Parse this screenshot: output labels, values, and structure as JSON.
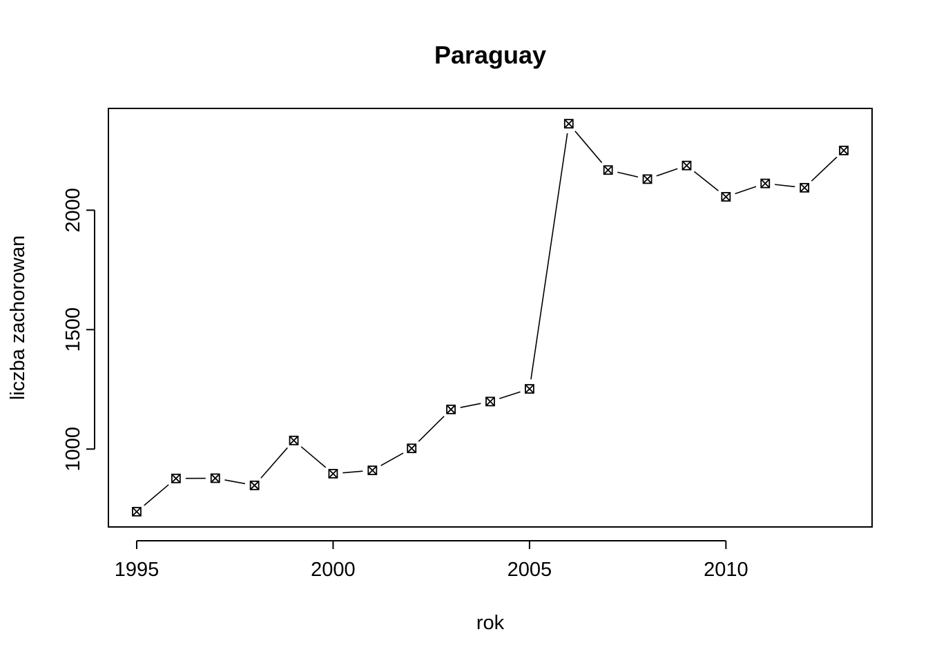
{
  "chart_data": {
    "type": "line",
    "title": "Paraguay",
    "xlabel": "rok",
    "ylabel": "liczba zachorowan",
    "x": [
      1995,
      1996,
      1997,
      1998,
      1999,
      2000,
      2001,
      2002,
      2003,
      2004,
      2005,
      2006,
      2007,
      2008,
      2009,
      2010,
      2011,
      2012,
      2013
    ],
    "series": [
      {
        "values": [
          738,
          877,
          878,
          848,
          1036,
          897,
          911,
          1003,
          1166,
          1199,
          1252,
          2362,
          2168,
          2130,
          2187,
          2056,
          2112,
          2094,
          2250
        ]
      }
    ],
    "xlim": [
      1994.28,
      2013.72
    ],
    "ylim": [
      674,
      2426
    ],
    "xticks": [
      "1995",
      "2000",
      "2005",
      "2010"
    ],
    "yticks": [
      "1000",
      "1500",
      "2000"
    ],
    "marker": "boxed-x",
    "line_style": "overplotted points joined by lines",
    "grid": false,
    "legend": "none"
  }
}
